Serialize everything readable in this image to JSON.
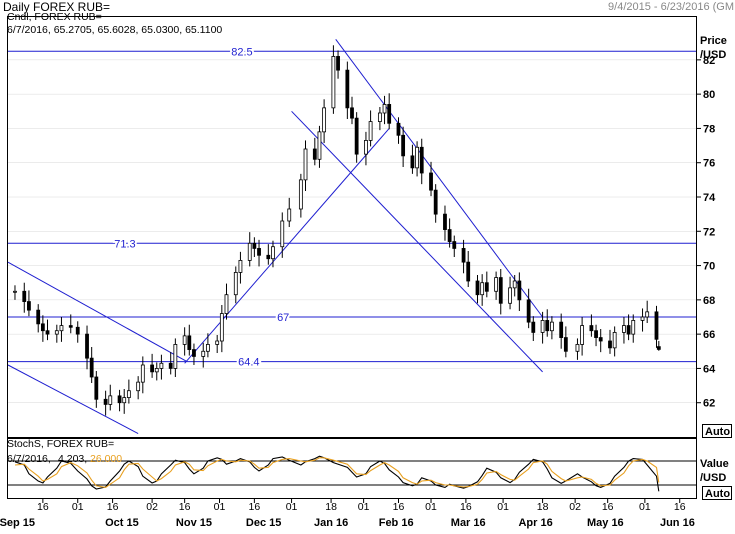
{
  "header": {
    "title": "Daily FOREX RUB=",
    "date_range": "9/4/2015 - 6/23/2016 (GM"
  },
  "main_panel": {
    "study_label": "Cndl, FOREX RUB=",
    "ohlc_readout": "6/7/2016, 65.2705, 65.6028, 65.0300, 65.1100",
    "axis_title_line1": "Price",
    "axis_title_line2": "/USD",
    "auto_label": "Auto"
  },
  "stoch_panel": {
    "study_label": "StochS, FOREX RUB=",
    "readout_date": "6/7/2016,",
    "readout_k": "4.203,",
    "readout_d": "26.000",
    "axis_title_line1": "Value",
    "axis_title_line2": "/USD",
    "auto_label": "Auto"
  },
  "colors": {
    "candle": "#000000",
    "level_line": "#1f1fd0",
    "trend_line": "#1f1fd0",
    "stoch_k": "#000000",
    "stoch_d": "#e8a020",
    "grid": "#d8d8d8",
    "axis_text": "#000000"
  },
  "chart_data": [
    {
      "type": "candlestick",
      "title": "Daily FOREX RUB=",
      "ylabel": "Price /USD",
      "ylim": [
        60,
        84.5
      ],
      "yticks": [
        62,
        64,
        66,
        68,
        70,
        72,
        74,
        76,
        78,
        80,
        82
      ],
      "x_range": [
        "2015-09-01",
        "2016-06-23"
      ],
      "x_ticks": [
        {
          "label": "16",
          "date": "2015-09-16"
        },
        {
          "label": "01",
          "date": "2015-10-01"
        },
        {
          "label": "16",
          "date": "2015-10-16"
        },
        {
          "label": "02",
          "date": "2015-11-02"
        },
        {
          "label": "16",
          "date": "2015-11-16"
        },
        {
          "label": "01",
          "date": "2015-12-01"
        },
        {
          "label": "16",
          "date": "2015-12-16"
        },
        {
          "label": "01",
          "date": "2016-01-01"
        },
        {
          "label": "18",
          "date": "2016-01-18"
        },
        {
          "label": "01",
          "date": "2016-02-01"
        },
        {
          "label": "16",
          "date": "2016-02-16"
        },
        {
          "label": "01",
          "date": "2016-03-01"
        },
        {
          "label": "16",
          "date": "2016-03-16"
        },
        {
          "label": "01",
          "date": "2016-04-01"
        },
        {
          "label": "18",
          "date": "2016-04-18"
        },
        {
          "label": "02",
          "date": "2016-05-02"
        },
        {
          "label": "16",
          "date": "2016-05-16"
        },
        {
          "label": "01",
          "date": "2016-06-01"
        },
        {
          "label": "16",
          "date": "2016-06-16"
        }
      ],
      "month_labels": [
        {
          "label": "Sep 15",
          "date": "2015-09-05"
        },
        {
          "label": "Oct 15",
          "date": "2015-10-20"
        },
        {
          "label": "Nov 15",
          "date": "2015-11-20"
        },
        {
          "label": "Dec 15",
          "date": "2015-12-20"
        },
        {
          "label": "Jan 16",
          "date": "2016-01-18"
        },
        {
          "label": "Feb 16",
          "date": "2016-02-15"
        },
        {
          "label": "Mar 16",
          "date": "2016-03-17"
        },
        {
          "label": "Apr 16",
          "date": "2016-04-15"
        },
        {
          "label": "May 16",
          "date": "2016-05-15"
        },
        {
          "label": "Jun 16",
          "date": "2016-06-15"
        }
      ],
      "series": [
        {
          "date": "2015-09-04",
          "close": 68.5
        },
        {
          "date": "2015-09-08",
          "close": 67.9
        },
        {
          "date": "2015-09-10",
          "close": 67.4
        },
        {
          "date": "2015-09-14",
          "close": 66.6
        },
        {
          "date": "2015-09-16",
          "close": 66.2
        },
        {
          "date": "2015-09-18",
          "close": 66.0
        },
        {
          "date": "2015-09-22",
          "close": 66.2
        },
        {
          "date": "2015-09-24",
          "close": 66.5
        },
        {
          "date": "2015-09-28",
          "close": 66.4
        },
        {
          "date": "2015-10-01",
          "close": 66.0
        },
        {
          "date": "2015-10-05",
          "close": 64.6
        },
        {
          "date": "2015-10-07",
          "close": 63.5
        },
        {
          "date": "2015-10-09",
          "close": 62.2
        },
        {
          "date": "2015-10-13",
          "close": 61.9
        },
        {
          "date": "2015-10-15",
          "close": 62.4
        },
        {
          "date": "2015-10-19",
          "close": 62.0
        },
        {
          "date": "2015-10-21",
          "close": 62.3
        },
        {
          "date": "2015-10-23",
          "close": 62.7
        },
        {
          "date": "2015-10-27",
          "close": 63.2
        },
        {
          "date": "2015-10-29",
          "close": 64.2
        },
        {
          "date": "2015-11-02",
          "close": 63.8
        },
        {
          "date": "2015-11-04",
          "close": 64.0
        },
        {
          "date": "2015-11-06",
          "close": 64.3
        },
        {
          "date": "2015-11-10",
          "close": 64.0
        },
        {
          "date": "2015-11-12",
          "close": 65.4
        },
        {
          "date": "2015-11-16",
          "close": 65.9
        },
        {
          "date": "2015-11-18",
          "close": 65.1
        },
        {
          "date": "2015-11-20",
          "close": 64.7
        },
        {
          "date": "2015-11-24",
          "close": 65.0
        },
        {
          "date": "2015-11-26",
          "close": 65.4
        },
        {
          "date": "2015-11-30",
          "close": 65.6
        },
        {
          "date": "2015-12-02",
          "close": 67.2
        },
        {
          "date": "2015-12-04",
          "close": 68.3
        },
        {
          "date": "2015-12-08",
          "close": 69.6
        },
        {
          "date": "2015-12-10",
          "close": 70.3
        },
        {
          "date": "2015-12-14",
          "close": 71.3
        },
        {
          "date": "2015-12-16",
          "close": 71.0
        },
        {
          "date": "2015-12-18",
          "close": 70.6
        },
        {
          "date": "2015-12-22",
          "close": 70.4
        },
        {
          "date": "2015-12-24",
          "close": 71.1
        },
        {
          "date": "2015-12-28",
          "close": 72.6
        },
        {
          "date": "2015-12-31",
          "close": 73.3
        },
        {
          "date": "2016-01-05",
          "close": 75.0
        },
        {
          "date": "2016-01-07",
          "close": 76.8
        },
        {
          "date": "2016-01-11",
          "close": 76.2
        },
        {
          "date": "2016-01-13",
          "close": 77.8
        },
        {
          "date": "2016-01-15",
          "close": 79.2
        },
        {
          "date": "2016-01-19",
          "close": 82.2
        },
        {
          "date": "2016-01-21",
          "close": 81.4
        },
        {
          "date": "2016-01-25",
          "close": 79.2
        },
        {
          "date": "2016-01-27",
          "close": 78.6
        },
        {
          "date": "2016-01-29",
          "close": 76.5
        },
        {
          "date": "2016-02-02",
          "close": 77.3
        },
        {
          "date": "2016-02-04",
          "close": 78.4
        },
        {
          "date": "2016-02-08",
          "close": 78.9
        },
        {
          "date": "2016-02-10",
          "close": 79.4
        },
        {
          "date": "2016-02-12",
          "close": 78.3
        },
        {
          "date": "2016-02-16",
          "close": 77.6
        },
        {
          "date": "2016-02-18",
          "close": 76.4
        },
        {
          "date": "2016-02-22",
          "close": 75.7
        },
        {
          "date": "2016-02-24",
          "close": 76.9
        },
        {
          "date": "2016-02-26",
          "close": 75.4
        },
        {
          "date": "2016-03-01",
          "close": 74.4
        },
        {
          "date": "2016-03-03",
          "close": 73.0
        },
        {
          "date": "2016-03-07",
          "close": 72.1
        },
        {
          "date": "2016-03-09",
          "close": 71.4
        },
        {
          "date": "2016-03-11",
          "close": 71.0
        },
        {
          "date": "2016-03-15",
          "close": 70.2
        },
        {
          "date": "2016-03-17",
          "close": 69.1
        },
        {
          "date": "2016-03-21",
          "close": 68.3
        },
        {
          "date": "2016-03-23",
          "close": 69.0
        },
        {
          "date": "2016-03-25",
          "close": 68.5
        },
        {
          "date": "2016-03-29",
          "close": 69.3
        },
        {
          "date": "2016-03-31",
          "close": 67.8
        },
        {
          "date": "2016-04-04",
          "close": 68.7
        },
        {
          "date": "2016-04-06",
          "close": 69.1
        },
        {
          "date": "2016-04-08",
          "close": 68.0
        },
        {
          "date": "2016-04-12",
          "close": 66.7
        },
        {
          "date": "2016-04-14",
          "close": 66.1
        },
        {
          "date": "2016-04-18",
          "close": 66.8
        },
        {
          "date": "2016-04-20",
          "close": 66.2
        },
        {
          "date": "2016-04-22",
          "close": 66.7
        },
        {
          "date": "2016-04-26",
          "close": 65.8
        },
        {
          "date": "2016-04-28",
          "close": 65.0
        },
        {
          "date": "2016-05-03",
          "close": 65.4
        },
        {
          "date": "2016-05-05",
          "close": 66.5
        },
        {
          "date": "2016-05-09",
          "close": 66.2
        },
        {
          "date": "2016-05-11",
          "close": 65.8
        },
        {
          "date": "2016-05-13",
          "close": 65.6
        },
        {
          "date": "2016-05-17",
          "close": 65.2
        },
        {
          "date": "2016-05-19",
          "close": 66.1
        },
        {
          "date": "2016-05-23",
          "close": 66.5
        },
        {
          "date": "2016-05-25",
          "close": 66.0
        },
        {
          "date": "2016-05-27",
          "close": 66.8
        },
        {
          "date": "2016-05-31",
          "close": 67.0
        },
        {
          "date": "2016-06-02",
          "close": 67.3
        },
        {
          "date": "2016-06-06",
          "close": 65.7
        },
        {
          "date": "2016-06-07",
          "open": 65.2705,
          "high": 65.6028,
          "low": 65.03,
          "close": 65.11
        }
      ],
      "horizontal_levels": [
        {
          "label": "82.5",
          "value": 82.5
        },
        {
          "label": "71.3",
          "value": 71.3
        },
        {
          "label": "67",
          "value": 67
        },
        {
          "label": "64.4",
          "value": 64.4
        }
      ],
      "trend_lines": [
        {
          "from": {
            "date": "2015-09-01",
            "value": 70.2
          },
          "to": {
            "date": "2015-11-17",
            "value": 64.4
          }
        },
        {
          "from": {
            "date": "2015-09-01",
            "value": 64.2
          },
          "to": {
            "date": "2015-10-27",
            "value": 60.2
          }
        },
        {
          "from": {
            "date": "2015-11-16",
            "value": 64.3
          },
          "to": {
            "date": "2016-02-12",
            "value": 78.0
          }
        },
        {
          "from": {
            "date": "2016-01-20",
            "value": 83.2
          },
          "to": {
            "date": "2016-04-18",
            "value": 67.0
          }
        },
        {
          "from": {
            "date": "2016-01-01",
            "value": 79.0
          },
          "to": {
            "date": "2016-04-18",
            "value": 63.8
          }
        }
      ]
    },
    {
      "type": "line",
      "title": "StochS, FOREX RUB=",
      "ylabel": "Value /USD",
      "ylim": [
        0,
        100
      ],
      "reference_levels": [
        20,
        80
      ],
      "series": [
        {
          "name": "4.203",
          "color": "#000000",
          "values": [
            78,
            70,
            48,
            30,
            25,
            40,
            62,
            80,
            74,
            55,
            35,
            18,
            10,
            15,
            30,
            55,
            72,
            80,
            66,
            42,
            25,
            30,
            48,
            70,
            82,
            76,
            60,
            48,
            62,
            80,
            88,
            84,
            72,
            80,
            86,
            78,
            64,
            55,
            70,
            86,
            90,
            82,
            70,
            78,
            86,
            92,
            88,
            76,
            64,
            52,
            40,
            48,
            66,
            80,
            74,
            58,
            40,
            26,
            18,
            22,
            38,
            30,
            20,
            14,
            22,
            18,
            12,
            16,
            28,
            44,
            62,
            52,
            38,
            26,
            34,
            52,
            72,
            84,
            78,
            60,
            38,
            24,
            30,
            48,
            40,
            28,
            18,
            14,
            24,
            42,
            64,
            80,
            86,
            84,
            70,
            42,
            4.203
          ]
        },
        {
          "name": "26.000",
          "color": "#e8a020",
          "values": [
            70,
            72,
            60,
            42,
            30,
            34,
            48,
            66,
            76,
            68,
            50,
            32,
            18,
            14,
            22,
            38,
            58,
            72,
            74,
            60,
            40,
            30,
            36,
            54,
            70,
            78,
            72,
            58,
            56,
            68,
            80,
            84,
            80,
            78,
            82,
            80,
            72,
            62,
            64,
            76,
            84,
            86,
            80,
            78,
            82,
            88,
            88,
            82,
            72,
            60,
            48,
            46,
            56,
            70,
            76,
            70,
            54,
            38,
            26,
            22,
            30,
            32,
            26,
            20,
            20,
            18,
            15,
            16,
            22,
            34,
            50,
            54,
            46,
            34,
            32,
            42,
            60,
            76,
            80,
            72,
            54,
            36,
            30,
            38,
            40,
            34,
            24,
            18,
            20,
            32,
            50,
            68,
            80,
            84,
            80,
            64,
            26.0
          ]
        }
      ]
    }
  ]
}
